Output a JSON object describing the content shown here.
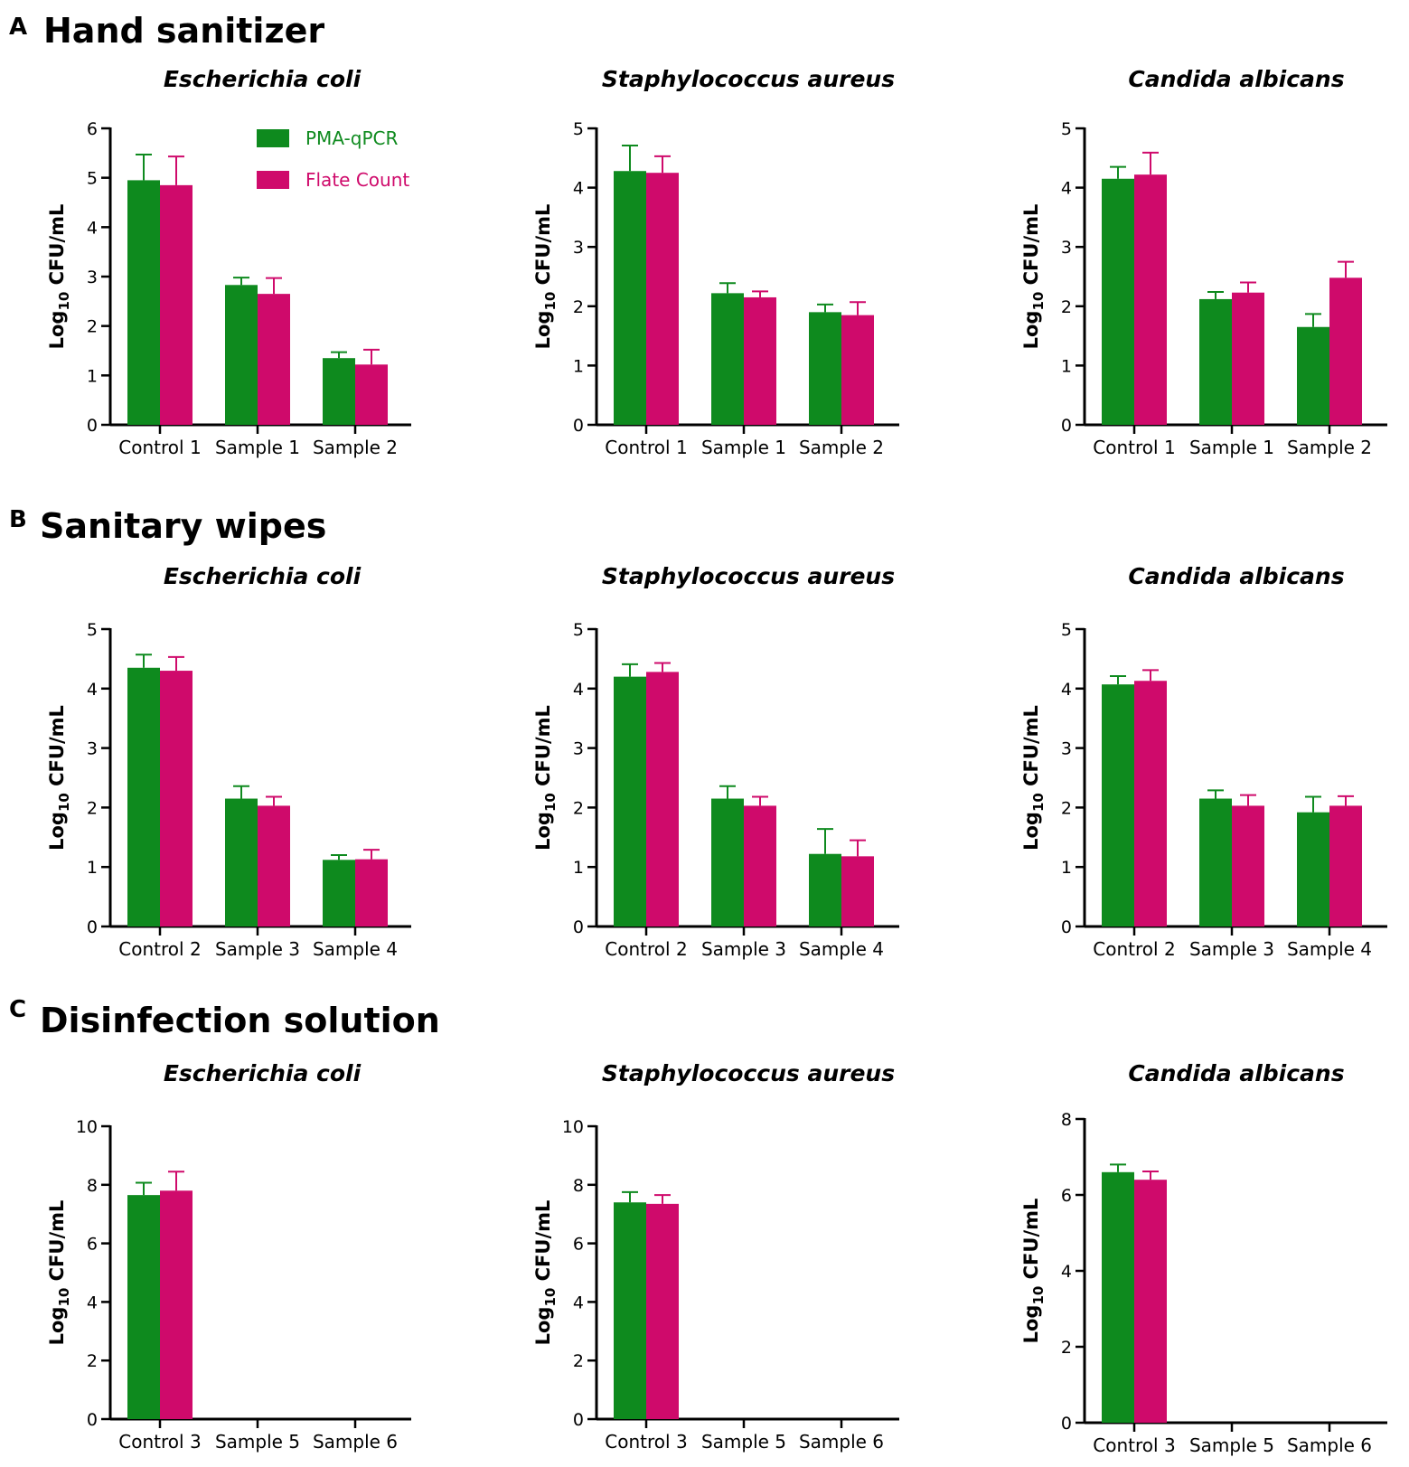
{
  "colors": {
    "pma": "#0e8a1e",
    "plate": "#cf0a6b"
  },
  "legend": {
    "pma_label": "PMA-qPCR",
    "plate_label": "Flate Count"
  },
  "ylabel": {
    "prefix": "Log",
    "sub": "10",
    "suffix": " CFU/mL"
  },
  "panels": [
    {
      "letter": "A",
      "title": "Hand sanitizer"
    },
    {
      "letter": "B",
      "title": "Sanitary wipes"
    },
    {
      "letter": "C",
      "title": "Disinfection solution"
    }
  ],
  "chart_data": [
    {
      "type": "bar",
      "panel": "A",
      "title": "Escherichia coli",
      "ylabel": "Log10 CFU/mL",
      "ylim": [
        0,
        6
      ],
      "yticks": [
        0,
        1,
        2,
        3,
        4,
        5,
        6
      ],
      "categories": [
        "Control 1",
        "Sample 1",
        "Sample 2"
      ],
      "series": [
        {
          "name": "PMA-qPCR",
          "values": [
            4.95,
            2.83,
            1.35
          ],
          "errors": [
            0.52,
            0.15,
            0.12
          ]
        },
        {
          "name": "Flate Count",
          "values": [
            4.85,
            2.65,
            1.22
          ],
          "errors": [
            0.58,
            0.32,
            0.3
          ]
        }
      ]
    },
    {
      "type": "bar",
      "panel": "A",
      "title": "Staphylococcus aureus",
      "ylabel": "Log10 CFU/mL",
      "ylim": [
        0,
        5
      ],
      "yticks": [
        0,
        1,
        2,
        3,
        4,
        5
      ],
      "categories": [
        "Control 1",
        "Sample 1",
        "Sample 2"
      ],
      "series": [
        {
          "name": "PMA-qPCR",
          "values": [
            4.28,
            2.22,
            1.9
          ],
          "errors": [
            0.43,
            0.17,
            0.13
          ]
        },
        {
          "name": "Flate Count",
          "values": [
            4.25,
            2.15,
            1.85
          ],
          "errors": [
            0.28,
            0.1,
            0.22
          ]
        }
      ]
    },
    {
      "type": "bar",
      "panel": "A",
      "title": "Candida albicans",
      "ylabel": "Log10 CFU/mL",
      "ylim": [
        0,
        5
      ],
      "yticks": [
        0,
        1,
        2,
        3,
        4,
        5
      ],
      "categories": [
        "Control 1",
        "Sample 1",
        "Sample 2"
      ],
      "series": [
        {
          "name": "PMA-qPCR",
          "values": [
            4.15,
            2.12,
            1.65
          ],
          "errors": [
            0.2,
            0.12,
            0.22
          ]
        },
        {
          "name": "Flate Count",
          "values": [
            4.22,
            2.23,
            2.48
          ],
          "errors": [
            0.37,
            0.17,
            0.27
          ]
        }
      ]
    },
    {
      "type": "bar",
      "panel": "B",
      "title": "Escherichia coli",
      "ylabel": "Log10 CFU/mL",
      "ylim": [
        0,
        5
      ],
      "yticks": [
        0,
        1,
        2,
        3,
        4,
        5
      ],
      "categories": [
        "Control 2",
        "Sample 3",
        "Sample 4"
      ],
      "series": [
        {
          "name": "PMA-qPCR",
          "values": [
            4.35,
            2.15,
            1.12
          ],
          "errors": [
            0.22,
            0.21,
            0.08
          ]
        },
        {
          "name": "Flate Count",
          "values": [
            4.3,
            2.03,
            1.13
          ],
          "errors": [
            0.23,
            0.15,
            0.16
          ]
        }
      ]
    },
    {
      "type": "bar",
      "panel": "B",
      "title": "Staphylococcus aureus",
      "ylabel": "Log10 CFU/mL",
      "ylim": [
        0,
        5
      ],
      "yticks": [
        0,
        1,
        2,
        3,
        4,
        5
      ],
      "categories": [
        "Control 2",
        "Sample 3",
        "Sample 4"
      ],
      "series": [
        {
          "name": "PMA-qPCR",
          "values": [
            4.2,
            2.15,
            1.22
          ],
          "errors": [
            0.21,
            0.21,
            0.42
          ]
        },
        {
          "name": "Flate Count",
          "values": [
            4.28,
            2.03,
            1.18
          ],
          "errors": [
            0.15,
            0.15,
            0.27
          ]
        }
      ]
    },
    {
      "type": "bar",
      "panel": "B",
      "title": "Candida albicans",
      "ylabel": "Log10 CFU/mL",
      "ylim": [
        0,
        5
      ],
      "yticks": [
        0,
        1,
        2,
        3,
        4,
        5
      ],
      "categories": [
        "Control 2",
        "Sample 3",
        "Sample 4"
      ],
      "series": [
        {
          "name": "PMA-qPCR",
          "values": [
            4.07,
            2.15,
            1.92
          ],
          "errors": [
            0.14,
            0.14,
            0.26
          ]
        },
        {
          "name": "Flate Count",
          "values": [
            4.13,
            2.03,
            2.03
          ],
          "errors": [
            0.18,
            0.18,
            0.16
          ]
        }
      ]
    },
    {
      "type": "bar",
      "panel": "C",
      "title": "Escherichia coli",
      "ylabel": "Log10 CFU/mL",
      "ylim": [
        0,
        10
      ],
      "yticks": [
        0,
        2,
        4,
        6,
        8,
        10
      ],
      "categories": [
        "Control 3",
        "Sample 5",
        "Sample 6"
      ],
      "series": [
        {
          "name": "PMA-qPCR",
          "values": [
            7.65,
            0,
            0
          ],
          "errors": [
            0.42,
            0,
            0
          ]
        },
        {
          "name": "Flate Count",
          "values": [
            7.8,
            0,
            0
          ],
          "errors": [
            0.65,
            0,
            0
          ]
        }
      ]
    },
    {
      "type": "bar",
      "panel": "C",
      "title": "Staphylococcus aureus",
      "ylabel": "Log10 CFU/mL",
      "ylim": [
        0,
        10
      ],
      "yticks": [
        0,
        2,
        4,
        6,
        8,
        10
      ],
      "categories": [
        "Control 3",
        "Sample 5",
        "Sample 6"
      ],
      "series": [
        {
          "name": "PMA-qPCR",
          "values": [
            7.4,
            0,
            0
          ],
          "errors": [
            0.35,
            0,
            0
          ]
        },
        {
          "name": "Flate Count",
          "values": [
            7.35,
            0,
            0
          ],
          "errors": [
            0.3,
            0,
            0
          ]
        }
      ]
    },
    {
      "type": "bar",
      "panel": "C",
      "title": "Candida albicans",
      "ylabel": "Log10 CFU/mL",
      "ylim": [
        0,
        8
      ],
      "yticks": [
        0,
        2,
        4,
        6,
        8
      ],
      "categories": [
        "Control 3",
        "Sample 5",
        "Sample 6"
      ],
      "series": [
        {
          "name": "PMA-qPCR",
          "values": [
            6.6,
            0,
            0
          ],
          "errors": [
            0.2,
            0,
            0
          ]
        },
        {
          "name": "Flate Count",
          "values": [
            6.4,
            0,
            0
          ],
          "errors": [
            0.22,
            0,
            0
          ]
        }
      ]
    }
  ]
}
